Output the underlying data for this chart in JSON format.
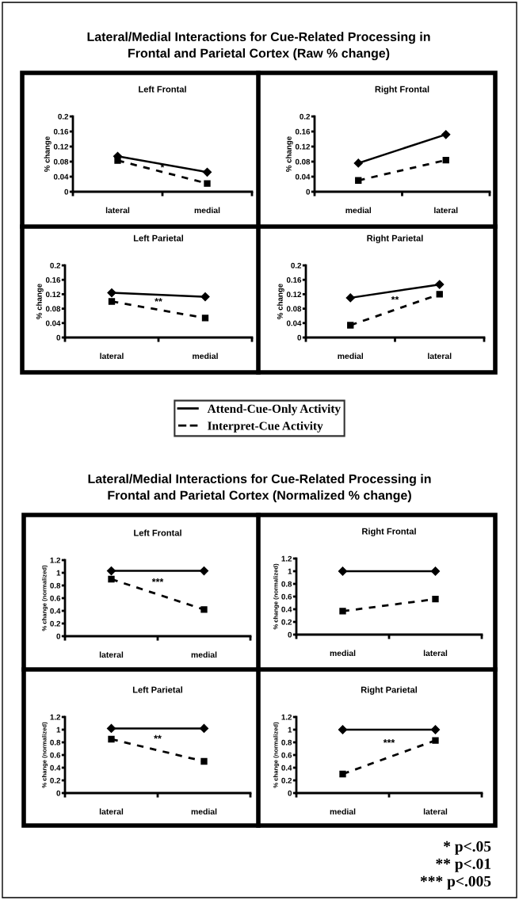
{
  "chart_data": [
    {
      "type": "line",
      "title": "Left Frontal",
      "ylabel": "% change",
      "categories": [
        "lateral",
        "medial"
      ],
      "ylim": [
        0,
        0.2
      ],
      "yticks": [
        0,
        0.04,
        0.08,
        0.12,
        0.16,
        0.2
      ],
      "annotations": [
        "Lateral/Medial Interactions for Cue-Related Processing in\nFrontal and Parietal Cortex (Raw % change)",
        "*"
      ],
      "legend": "bottom",
      "series": [
        {
          "name": "Attend-Cue-Only Activity",
          "color": "#000000",
          "values": [
            0.094,
            0.052
          ],
          "line_style": "solid",
          "marker": "diamond"
        },
        {
          "name": "Interpret-Cue Activity",
          "color": "#000000",
          "values": [
            0.083,
            0.022
          ],
          "line_style": "dashed",
          "marker": "square"
        }
      ]
    },
    {
      "type": "line",
      "title": "Right Frontal",
      "ylabel": "% change",
      "categories": [
        "medial",
        "lateral"
      ],
      "ylim": [
        0,
        0.2
      ],
      "yticks": [
        0,
        0.04,
        0.08,
        0.12,
        0.16,
        0.2
      ],
      "series": [
        {
          "color": "#000000",
          "values": [
            0.076,
            0.152
          ],
          "line_style": "solid",
          "marker": "diamond"
        },
        {
          "color": "#000000",
          "values": [
            0.03,
            0.084
          ],
          "line_style": "dashed",
          "marker": "square"
        }
      ]
    },
    {
      "type": "line",
      "title": "Left Parietal",
      "ylabel": "% change",
      "categories": [
        "lateral",
        "medial"
      ],
      "ylim": [
        0,
        0.2
      ],
      "yticks": [
        0,
        0.04,
        0.08,
        0.12,
        0.16,
        0.2
      ],
      "annotations": [
        "**"
      ],
      "series": [
        {
          "color": "#000000",
          "values": [
            0.124,
            0.113
          ],
          "line_style": "solid",
          "marker": "diamond"
        },
        {
          "color": "#000000",
          "values": [
            0.1,
            0.054
          ],
          "line_style": "dashed",
          "marker": "square"
        }
      ]
    },
    {
      "type": "line",
      "title": "Right Parietal",
      "ylabel": "% change",
      "categories": [
        "medial",
        "lateral"
      ],
      "ylim": [
        0,
        0.2
      ],
      "yticks": [
        0,
        0.04,
        0.08,
        0.12,
        0.16,
        0.2
      ],
      "annotations": [
        "**"
      ],
      "series": [
        {
          "color": "#000000",
          "values": [
            0.11,
            0.147
          ],
          "line_style": "solid",
          "marker": "diamond"
        },
        {
          "color": "#000000",
          "values": [
            0.034,
            0.12
          ],
          "line_style": "dashed",
          "marker": "square"
        }
      ]
    },
    {
      "type": "line",
      "title": "Left Frontal",
      "ylabel": "% change (normalized)",
      "categories": [
        "lateral",
        "medial"
      ],
      "ylim": [
        0,
        1.2
      ],
      "yticks": [
        0,
        0.2,
        0.4,
        0.6,
        0.8,
        1,
        1.2
      ],
      "annotations": [
        "Lateral/Medial Interactions for Cue-Related Processing in\nFrontal and Parietal Cortex (Normalized % change)",
        "***"
      ],
      "series": [
        {
          "color": "#000000",
          "values": [
            1.03,
            1.03
          ],
          "line_style": "solid",
          "marker": "diamond"
        },
        {
          "color": "#000000",
          "values": [
            0.9,
            0.42
          ],
          "line_style": "dashed",
          "marker": "square"
        }
      ]
    },
    {
      "type": "line",
      "title": "Right Frontal",
      "ylabel": "% change (normalized)",
      "categories": [
        "medial",
        "lateral"
      ],
      "ylim": [
        0,
        1.2
      ],
      "yticks": [
        0,
        0.2,
        0.4,
        0.6,
        0.8,
        1,
        1.2
      ],
      "series": [
        {
          "color": "#000000",
          "values": [
            1,
            1
          ],
          "line_style": "solid",
          "marker": "diamond"
        },
        {
          "color": "#000000",
          "values": [
            0.37,
            0.56
          ],
          "line_style": "dashed",
          "marker": "square"
        }
      ]
    },
    {
      "type": "line",
      "title": "Left Parietal",
      "ylabel": "% change (normalized)",
      "categories": [
        "lateral",
        "medial"
      ],
      "ylim": [
        0,
        1.2
      ],
      "yticks": [
        0,
        0.2,
        0.4,
        0.6,
        0.8,
        1,
        1.2
      ],
      "annotations": [
        "**"
      ],
      "series": [
        {
          "color": "#000000",
          "values": [
            1.02,
            1.02
          ],
          "line_style": "solid",
          "marker": "diamond"
        },
        {
          "color": "#000000",
          "values": [
            0.85,
            0.5
          ],
          "line_style": "dashed",
          "marker": "square"
        }
      ]
    },
    {
      "type": "line",
      "title": "Right Parietal",
      "ylabel": "% change (normalized)",
      "categories": [
        "medial",
        "lateral"
      ],
      "ylim": [
        0,
        1.2
      ],
      "yticks": [
        0,
        0.2,
        0.4,
        0.6,
        0.8,
        1,
        1.2
      ],
      "annotations": [
        "***",
        "* p<.05",
        "** p<.01",
        "*** p<.005"
      ],
      "series": [
        {
          "color": "#000000",
          "values": [
            1,
            1
          ],
          "line_style": "solid",
          "marker": "diamond"
        },
        {
          "color": "#000000",
          "values": [
            0.3,
            0.83
          ],
          "line_style": "dashed",
          "marker": "square"
        }
      ]
    }
  ]
}
